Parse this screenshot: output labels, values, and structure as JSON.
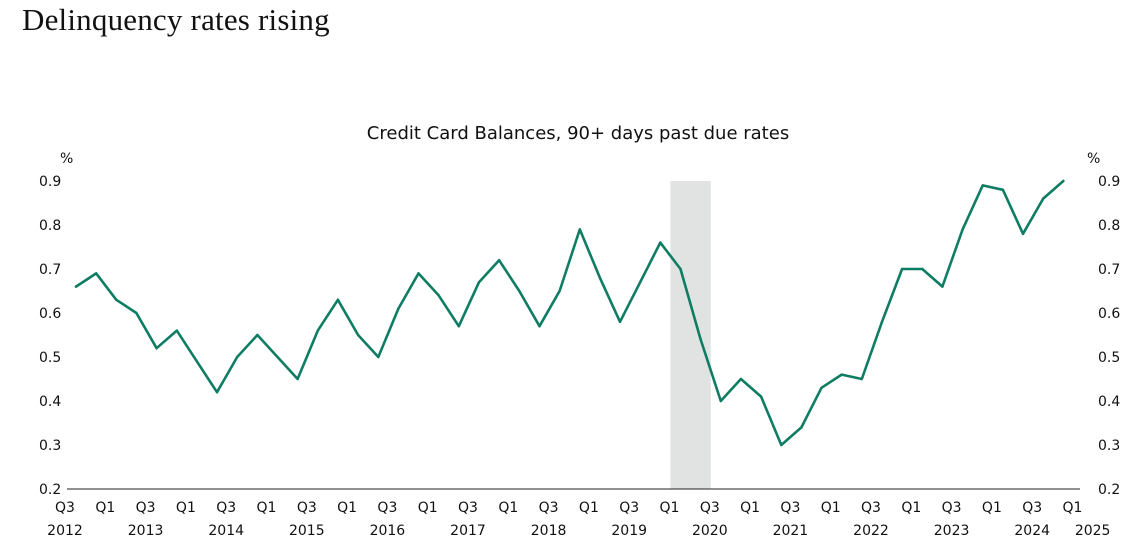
{
  "page": {
    "title": "Delinquency rates rising"
  },
  "colors": {
    "line": "#0f7d63",
    "recession": "#e1e2e2",
    "axis": "#222222"
  },
  "chart_data": {
    "type": "line",
    "title": "Credit Card Balances, 90+ days past due rates",
    "ylabel_left": "%",
    "ylabel_right": "%",
    "ylim": [
      0.2,
      0.9
    ],
    "yticks": [
      "0.2",
      "0.3",
      "0.4",
      "0.5",
      "0.6",
      "0.7",
      "0.8",
      "0.9"
    ],
    "xlim": [
      0,
      50
    ],
    "x_tick_labels": [
      "Q3",
      "Q1",
      "Q3",
      "Q1",
      "Q3",
      "Q1",
      "Q3",
      "Q1",
      "Q3",
      "Q1",
      "Q3",
      "Q1",
      "Q3",
      "Q1",
      "Q3",
      "Q1",
      "Q3",
      "Q1",
      "Q3",
      "Q1",
      "Q3",
      "Q1",
      "Q3",
      "Q1",
      "Q3",
      "Q1"
    ],
    "x_year_labels": [
      "2012",
      "2013",
      "2014",
      "2015",
      "2016",
      "2017",
      "2018",
      "2019",
      "2020",
      "2021",
      "2022",
      "2023",
      "2024",
      "2025"
    ],
    "x_year_positions": [
      0,
      4,
      8,
      12,
      16,
      20,
      24,
      28,
      32,
      36,
      40,
      44,
      48,
      51
    ],
    "recession_shading": [
      30,
      32
    ],
    "series": [
      {
        "name": "Credit Card Balances, 90+ days past due rates",
        "x": [
          0,
          1,
          2,
          3,
          4,
          5,
          6,
          7,
          8,
          9,
          10,
          11,
          12,
          13,
          14,
          15,
          16,
          17,
          18,
          19,
          20,
          21,
          22,
          23,
          24,
          25,
          26,
          27,
          28,
          29,
          30,
          31,
          32,
          33,
          34,
          35,
          36,
          37,
          38,
          39,
          40,
          41,
          42,
          43,
          44,
          45,
          46,
          47,
          48,
          49
        ],
        "values": [
          0.66,
          0.69,
          0.63,
          0.6,
          0.52,
          0.56,
          0.49,
          0.42,
          0.5,
          0.55,
          0.5,
          0.45,
          0.56,
          0.63,
          0.55,
          0.5,
          0.61,
          0.69,
          0.64,
          0.57,
          0.67,
          0.72,
          0.65,
          0.57,
          0.65,
          0.79,
          0.68,
          0.58,
          0.67,
          0.76,
          0.7,
          0.54,
          0.4,
          0.45,
          0.41,
          0.3,
          0.34,
          0.43,
          0.46,
          0.45,
          0.58,
          0.7,
          0.7,
          0.66,
          0.79,
          0.89,
          0.88,
          0.78,
          0.86,
          0.9
        ]
      }
    ]
  }
}
